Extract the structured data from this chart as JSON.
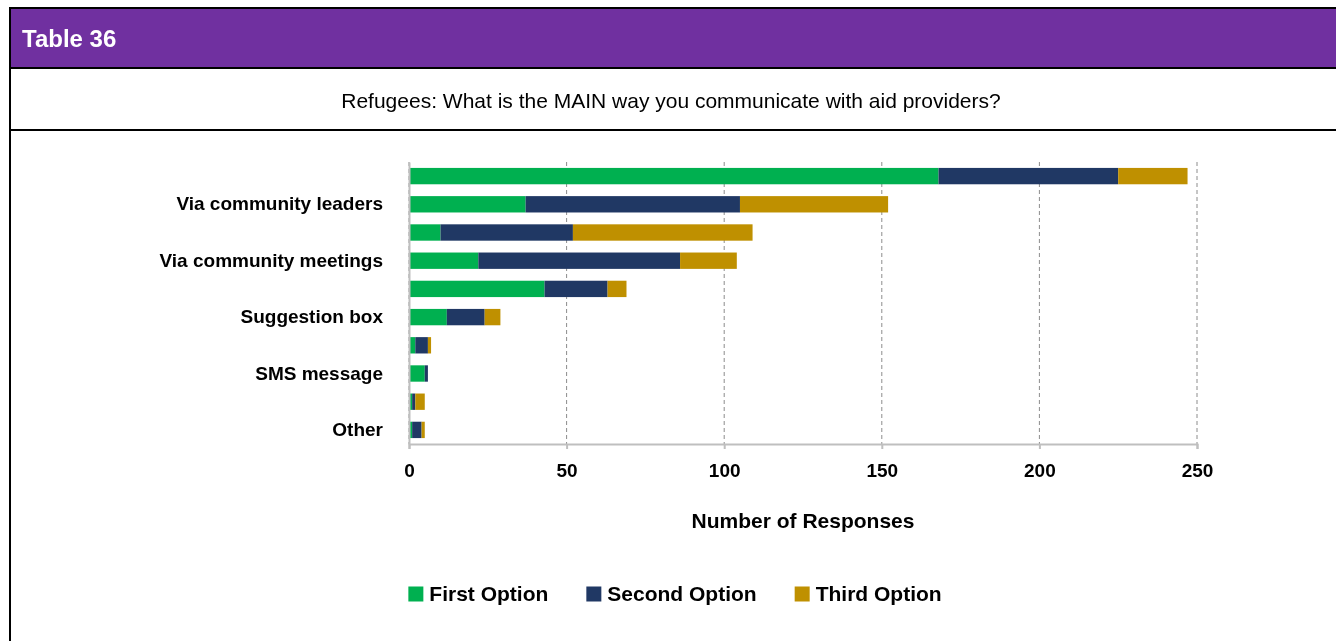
{
  "chart_data": {
    "type": "bar",
    "orientation": "horizontal",
    "stacked": true,
    "title": "Table 36",
    "subtitle": "Refugees: What is the MAIN way you communicate with aid providers?",
    "xlabel": "Number of Responses",
    "categories": [
      null,
      "Via community leaders",
      null,
      "Via community meetings",
      null,
      "Suggestion box",
      null,
      "SMS message",
      null,
      "Other"
    ],
    "series": [
      {
        "name": "First Option",
        "color": "#00b050",
        "values": [
          168,
          37,
          10,
          22,
          43,
          12,
          2,
          5,
          1,
          1
        ]
      },
      {
        "name": "Second Option",
        "color": "#203864",
        "values": [
          57,
          68,
          42,
          64,
          20,
          12,
          4,
          1,
          1,
          3
        ]
      },
      {
        "name": "Third Option",
        "color": "#bf9000",
        "values": [
          22,
          47,
          57,
          18,
          6,
          5,
          1,
          0,
          3,
          1
        ]
      }
    ],
    "xlim": [
      0,
      250
    ],
    "xticks": [
      0,
      50,
      100,
      150,
      200,
      250
    ],
    "grid": "x",
    "legend": "bottom"
  }
}
